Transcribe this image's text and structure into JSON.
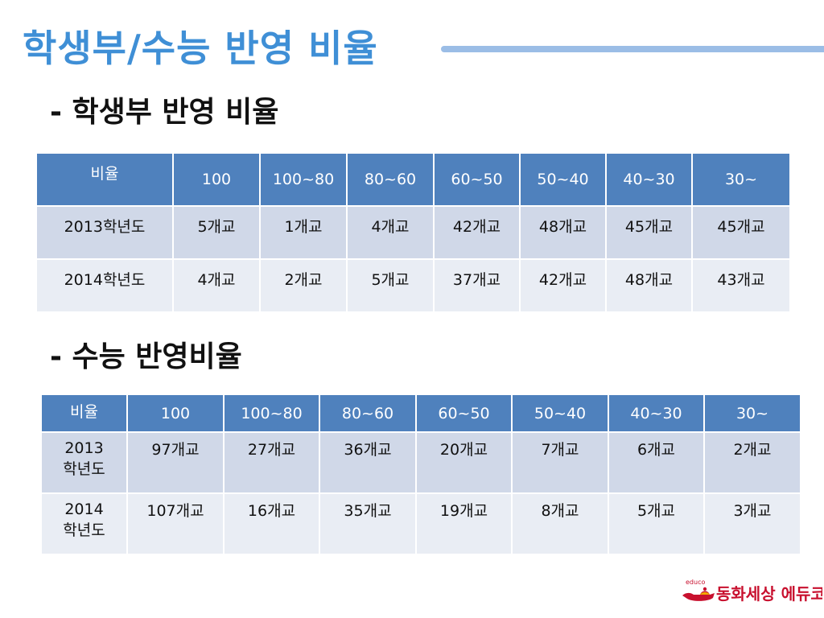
{
  "title": "학생부/수능 반영 비율",
  "section1": {
    "heading": "- 학생부 반영 비율",
    "headers": [
      "비율",
      "100",
      "100~80",
      "80~60",
      "60~50",
      "50~40",
      "40~30",
      "30~"
    ],
    "rows": [
      {
        "year": "2013학년도",
        "cells": [
          "5개교",
          "1개교",
          "4개교",
          "42개교",
          "48개교",
          "45개교",
          "45개교"
        ]
      },
      {
        "year": "2014학년도",
        "cells": [
          "4개교",
          "2개교",
          "5개교",
          "37개교",
          "42개교",
          "48개교",
          "43개교"
        ]
      }
    ]
  },
  "section2": {
    "heading": "- 수능 반영비율",
    "headers": [
      "비율",
      "100",
      "100~80",
      "80~60",
      "60~50",
      "50~40",
      "40~30",
      "30~"
    ],
    "rows": [
      {
        "year": "2013\n학년도",
        "cells": [
          "97개교",
          "27개교",
          "36개교",
          "20개교",
          "7개교",
          "6개교",
          "2개교"
        ]
      },
      {
        "year": "2014\n학년도",
        "cells": [
          "107개교",
          "16개교",
          "35개교",
          "19개교",
          "8개교",
          "5개교",
          "3개교"
        ]
      }
    ]
  },
  "logo": {
    "small_text": "educo",
    "text": "동화세상 에듀코"
  },
  "colors": {
    "title": "#3f8fd6",
    "header": "#4f81bd",
    "row1": "#d0d8e8",
    "row2": "#e9edf4"
  }
}
